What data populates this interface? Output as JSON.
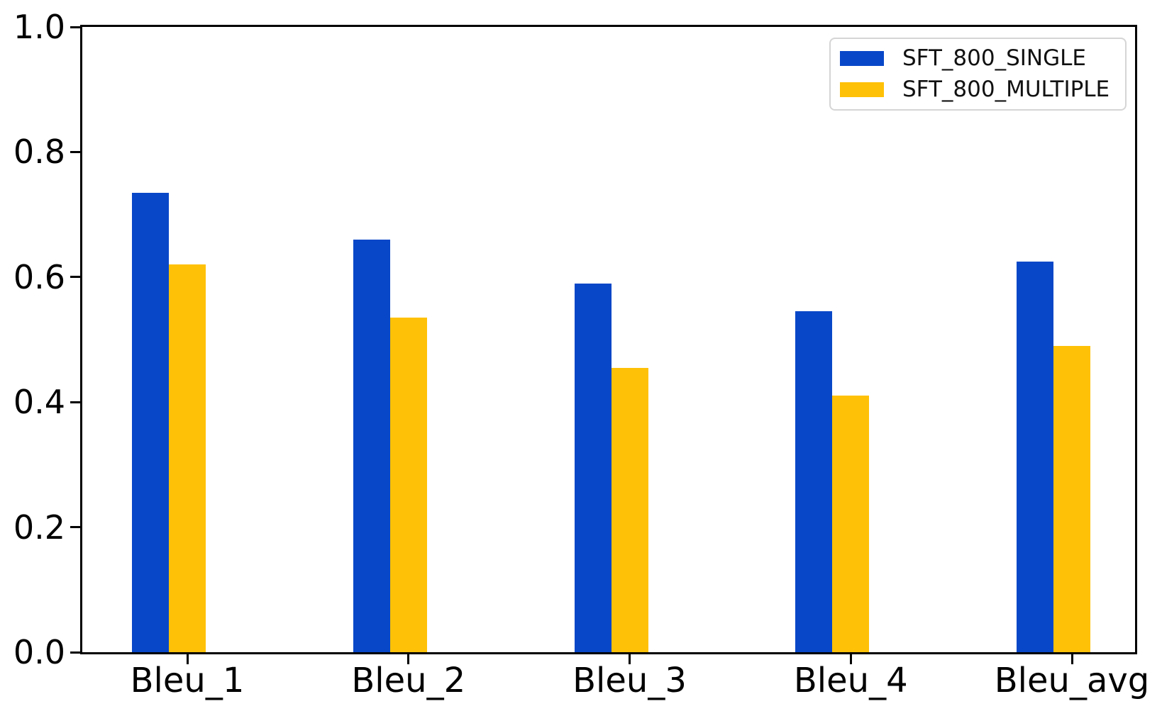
{
  "chart_data": {
    "type": "bar",
    "categories": [
      "Bleu_1",
      "Bleu_2",
      "Bleu_3",
      "Bleu_4",
      "Bleu_avg"
    ],
    "series": [
      {
        "name": "SFT_800_SINGLE",
        "color": "#0847C8",
        "values": [
          0.735,
          0.66,
          0.59,
          0.545,
          0.625
        ]
      },
      {
        "name": "SFT_800_MULTIPLE",
        "color": "#FFC107",
        "values": [
          0.62,
          0.535,
          0.455,
          0.41,
          0.49
        ]
      }
    ],
    "title": "",
    "xlabel": "",
    "ylabel": "",
    "ylim": [
      0.0,
      1.0
    ],
    "yticks": [
      "0.0",
      "0.2",
      "0.4",
      "0.6",
      "0.8",
      "1.0"
    ],
    "grid": false,
    "legend_position": "upper right",
    "axis_color": "#000000",
    "background_color": "#ffffff"
  }
}
